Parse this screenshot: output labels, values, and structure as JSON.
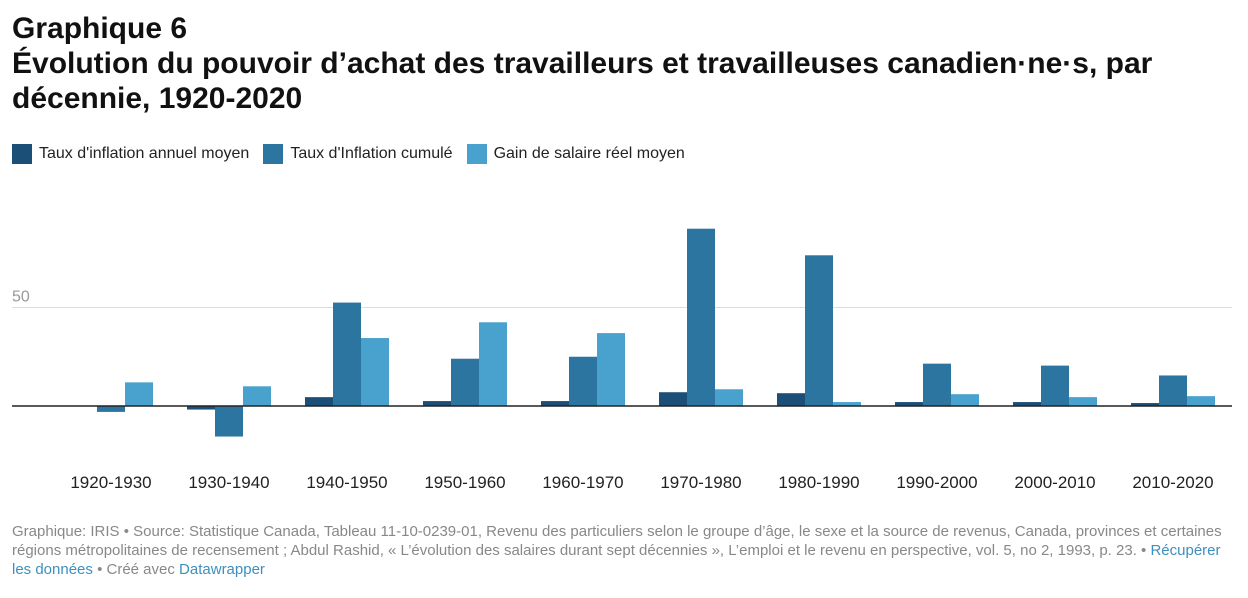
{
  "header": {
    "kicker": "Graphique 6",
    "title": "Évolution du pouvoir d’achat des travailleurs et travailleuses canadien·ne·s, par décennie, 1920-2020"
  },
  "colors": {
    "inflation_annuel": "#1c4f78",
    "inflation_cumule": "#2b75a0",
    "gain_salaire": "#48a2cd",
    "axis": "#222222",
    "grid": "#dddddd",
    "tick_text": "#999999",
    "category_text": "#222222"
  },
  "chart_data": {
    "type": "bar",
    "categories": [
      "1920-1930",
      "1930-1940",
      "1940-1950",
      "1950-1960",
      "1960-1970",
      "1970-1980",
      "1980-1990",
      "1990-2000",
      "2000-2010",
      "2010-2020"
    ],
    "series": [
      {
        "name": "Taux d'inflation annuel moyen",
        "values": [
          0.0,
          -1.8,
          4.5,
          2.5,
          2.5,
          7.0,
          6.5,
          2.0,
          2.0,
          1.5
        ]
      },
      {
        "name": "Taux d'Inflation cumulé",
        "values": [
          -3.0,
          -15.5,
          52.5,
          24.0,
          25.0,
          90.0,
          76.5,
          21.5,
          20.5,
          15.5
        ]
      },
      {
        "name": "Gain de salaire réel moyen",
        "values": [
          12.0,
          10.0,
          34.5,
          42.5,
          37.0,
          8.5,
          2.0,
          6.0,
          4.5,
          5.0
        ]
      }
    ],
    "title": "Évolution du pouvoir d’achat des travailleurs et travailleuses canadien·ne·s, par décennie, 1920-2020",
    "xlabel": "",
    "ylabel": "",
    "ylim": [
      -30,
      95
    ],
    "yticks": [
      {
        "value": 50,
        "label": "50"
      }
    ],
    "grid": true,
    "legend_position": "top-left"
  },
  "footer": {
    "source_text": "Graphique: IRIS • Source: Statistique Canada, Tableau 11-10-0239-01, Revenu des particuliers selon le groupe d’âge, le sexe et la source de revenus, Canada, provinces et certaines régions métropolitaines de recensement ; Abdul Rashid, « L’évolution des salaires durant sept décennies », L’emploi et le revenu en perspective, vol. 5, no 2, 1993, p. 23. •",
    "data_link": "Récupérer les données",
    "separator": "• Créé avec",
    "tool_link": "Datawrapper"
  }
}
